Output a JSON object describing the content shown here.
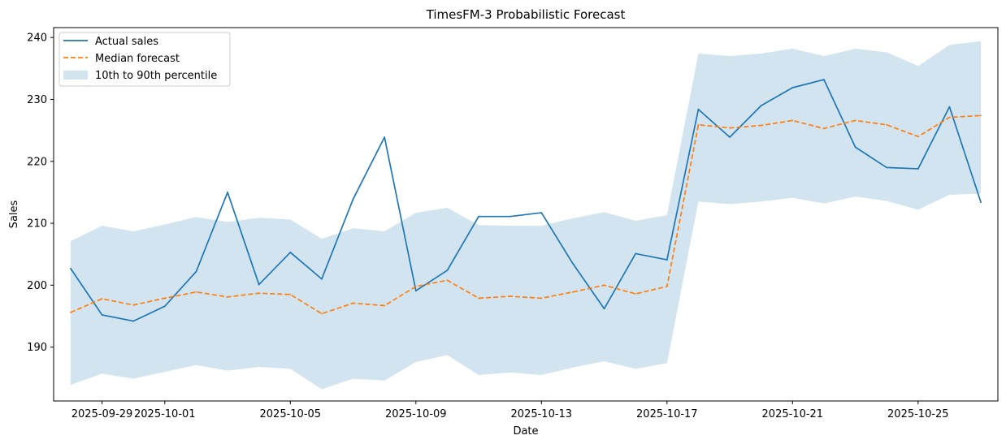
{
  "chart_data": {
    "type": "line",
    "title": "TimesFM-3 Probabilistic Forecast",
    "xlabel": "Date",
    "ylabel": "Sales",
    "x": [
      "2025-09-28",
      "2025-09-29",
      "2025-09-30",
      "2025-10-01",
      "2025-10-02",
      "2025-10-03",
      "2025-10-04",
      "2025-10-05",
      "2025-10-06",
      "2025-10-07",
      "2025-10-08",
      "2025-10-09",
      "2025-10-10",
      "2025-10-11",
      "2025-10-12",
      "2025-10-13",
      "2025-10-14",
      "2025-10-15",
      "2025-10-16",
      "2025-10-17",
      "2025-10-18",
      "2025-10-19",
      "2025-10-20",
      "2025-10-21",
      "2025-10-22",
      "2025-10-23",
      "2025-10-24",
      "2025-10-25",
      "2025-10-26",
      "2025-10-27"
    ],
    "xlim": [
      "2025-09-27T11:00",
      "2025-10-27T13:00"
    ],
    "ylim": [
      181.3,
      241.6
    ],
    "x_ticks": [
      {
        "date": "2025-09-29",
        "label": "2025-09-29"
      },
      {
        "date": "2025-10-01",
        "label": "2025-10-01"
      },
      {
        "date": "2025-10-05",
        "label": "2025-10-05"
      },
      {
        "date": "2025-10-09",
        "label": "2025-10-09"
      },
      {
        "date": "2025-10-13",
        "label": "2025-10-13"
      },
      {
        "date": "2025-10-17",
        "label": "2025-10-17"
      },
      {
        "date": "2025-10-21",
        "label": "2025-10-21"
      },
      {
        "date": "2025-10-25",
        "label": "2025-10-25"
      }
    ],
    "y_ticks": [
      190,
      200,
      210,
      220,
      230,
      240
    ],
    "grid": false,
    "legend_position": "top-left",
    "series": [
      {
        "name": "Actual sales",
        "style": "solid",
        "color": "#1f77b4",
        "values": [
          202.7,
          195.2,
          194.2,
          196.6,
          202.2,
          215.0,
          200.1,
          205.3,
          201.0,
          213.9,
          223.9,
          199.1,
          202.4,
          211.1,
          211.1,
          211.7,
          203.5,
          196.2,
          205.1,
          204.1,
          228.4,
          223.9,
          229.0,
          231.9,
          233.2,
          222.3,
          219.0,
          218.8,
          228.8,
          213.4
        ]
      },
      {
        "name": "Median forecast",
        "style": "dashed",
        "color": "#ff7f0e",
        "values": [
          195.6,
          197.8,
          196.8,
          197.9,
          198.9,
          198.1,
          198.7,
          198.5,
          195.4,
          197.1,
          196.7,
          199.8,
          200.8,
          197.9,
          198.2,
          197.9,
          198.9,
          200.0,
          198.6,
          199.8,
          225.9,
          225.4,
          225.8,
          226.6,
          225.3,
          226.6,
          225.9,
          224.0,
          227.1,
          227.4
        ]
      }
    ],
    "band": {
      "name": "10th to 90th percentile",
      "color": "#1f77b4",
      "opacity": 0.2,
      "upper": [
        207.1,
        209.6,
        208.7,
        209.8,
        211.0,
        210.2,
        210.9,
        210.6,
        207.5,
        209.2,
        208.7,
        211.7,
        212.5,
        209.7,
        209.6,
        209.6,
        210.8,
        211.8,
        210.4,
        211.3,
        237.4,
        237.0,
        237.4,
        238.2,
        237.0,
        238.2,
        237.6,
        235.4,
        238.8,
        239.4
      ],
      "lower": [
        183.9,
        185.7,
        184.9,
        186.0,
        187.1,
        186.2,
        186.8,
        186.5,
        183.2,
        184.9,
        184.6,
        187.6,
        188.7,
        185.5,
        185.9,
        185.5,
        186.7,
        187.7,
        186.5,
        187.4,
        213.5,
        213.1,
        213.5,
        214.1,
        213.2,
        214.3,
        213.6,
        212.2,
        214.6,
        214.8
      ]
    }
  }
}
